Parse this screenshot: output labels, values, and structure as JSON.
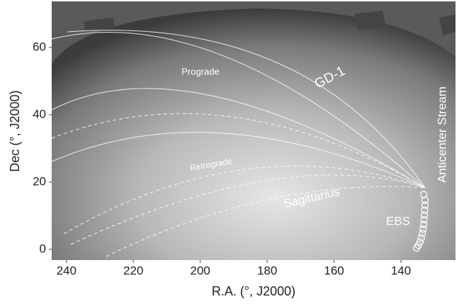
{
  "chart_data": {
    "type": "scatter",
    "x_label": "R.A. (°, J2000)",
    "y_label": "Dec (°, J2000)",
    "xlim": [
      244.4,
      123.7
    ],
    "ylim": [
      -3.2,
      73.7
    ],
    "xticks": [
      240,
      220,
      200,
      180,
      160,
      140
    ],
    "yticks": [
      0,
      20,
      40,
      60
    ],
    "annotations": [
      "Prograde",
      "GD-1",
      "Anticenter Stream",
      "Retrograde",
      "Sagittarius",
      "EBS"
    ],
    "series": [
      {
        "name": "EBS",
        "color": "#ffffff",
        "x": [
          133.2,
          132.8,
          132.8,
          132.9,
          133.0,
          133.1,
          133.2,
          133.4,
          133.6,
          133.9,
          134.3,
          134.8,
          135.3
        ],
        "y": [
          16.3,
          14.6,
          13.1,
          11.6,
          10.2,
          8.8,
          7.4,
          6.0,
          4.7,
          3.4,
          2.2,
          1.2,
          0.4
        ]
      }
    ]
  }
}
